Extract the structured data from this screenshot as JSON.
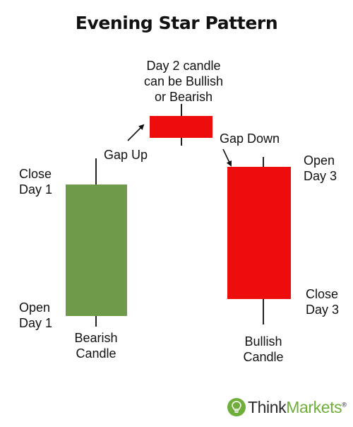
{
  "title": "Evening Star Pattern",
  "labels": {
    "day2_note": [
      "Day 2 candle",
      "can be Bullish",
      "or Bearish"
    ],
    "gap_up": "Gap Up",
    "gap_down": "Gap Down",
    "close_day1": [
      "Close",
      "Day 1"
    ],
    "open_day1": [
      "Open",
      "Day 1"
    ],
    "open_day3": [
      "Open",
      "Day 3"
    ],
    "close_day3": [
      "Close",
      "Day 3"
    ],
    "bearish_candle": [
      "Bearish",
      "Candle"
    ],
    "bullish_candle": [
      "Bullish",
      "Candle"
    ]
  },
  "logo": {
    "think": "Think",
    "markets": "Markets",
    "registered": "®"
  },
  "colors": {
    "green_candle": "#6f9a49",
    "red_candle": "#ee0d0d",
    "logo_green": "#6fae3a"
  },
  "icons": {
    "logo_mark": "lightbulb-icon",
    "arrows": "arrow-icon"
  }
}
